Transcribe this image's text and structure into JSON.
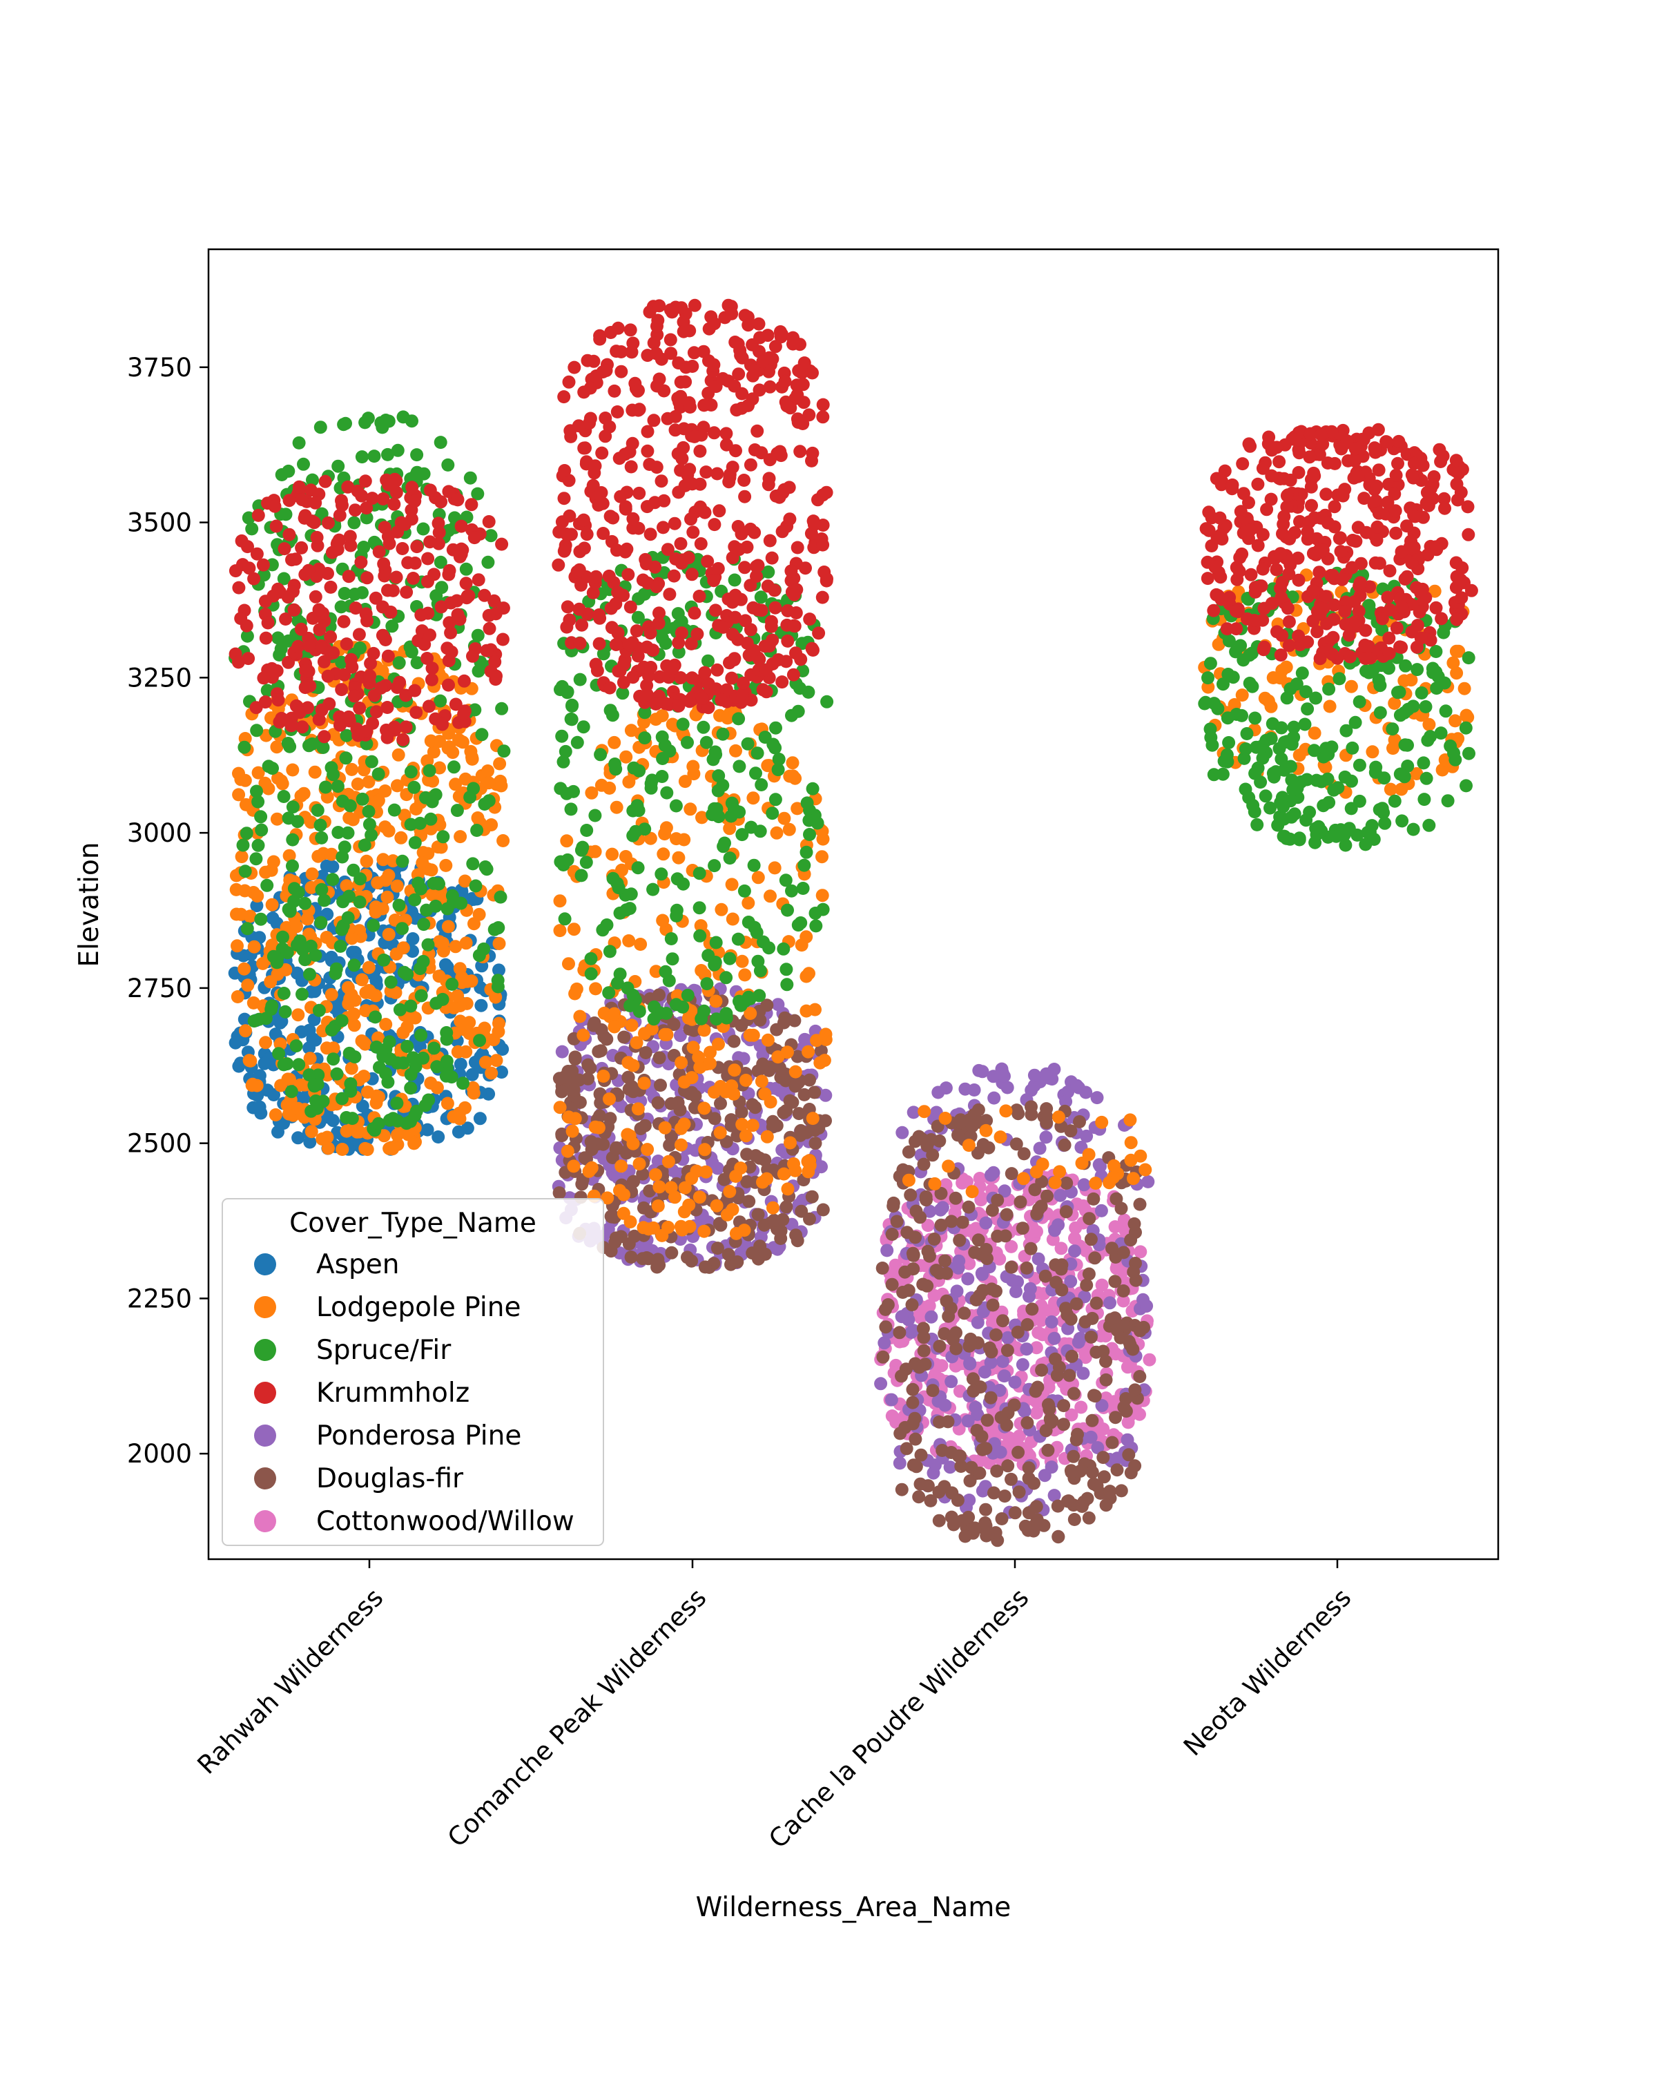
{
  "chart_data": {
    "type": "swarm",
    "xlabel": "Wilderness_Area_Name",
    "ylabel": "Elevation",
    "ylim": [
      1830,
      3940
    ],
    "yticks": [
      2000,
      2250,
      2500,
      2750,
      3000,
      3250,
      3500,
      3750
    ],
    "grid": false,
    "categories": [
      "Rahwah Wilderness",
      "Comanche Peak Wilderness",
      "Cache la Poudre Wilderness",
      "Neota Wilderness"
    ],
    "legend": {
      "title": "Cover_Type_Name",
      "position": "lower-left",
      "entries": [
        "Aspen",
        "Lodgepole Pine",
        "Spruce/Fir",
        "Krummholz",
        "Ponderosa Pine",
        "Douglas-fir",
        "Cottonwood/Willow"
      ]
    },
    "series": [
      {
        "name": "Aspen",
        "color": "#1f77b4",
        "ranges": [
          [
            2490,
            2950
          ],
          null,
          null,
          null
        ]
      },
      {
        "name": "Lodgepole Pine",
        "color": "#ff7f0e",
        "ranges": [
          [
            2490,
            3300
          ],
          [
            2350,
            3200
          ],
          [
            2420,
            2560
          ],
          [
            3060,
            3420
          ]
        ]
      },
      {
        "name": "Spruce/Fir",
        "color": "#2ca02c",
        "ranges": [
          [
            2520,
            3670
          ],
          [
            2700,
            3450
          ],
          null,
          [
            2980,
            3420
          ]
        ]
      },
      {
        "name": "Krummholz",
        "color": "#d62728",
        "ranges": [
          [
            3150,
            3570
          ],
          [
            3200,
            3850
          ],
          null,
          [
            3280,
            3650
          ]
        ]
      },
      {
        "name": "Ponderosa Pine",
        "color": "#9467bd",
        "ranges": [
          null,
          [
            2300,
            2750
          ],
          [
            1900,
            2620
          ],
          null
        ]
      },
      {
        "name": "Douglas-fir",
        "color": "#8c564b",
        "ranges": [
          null,
          [
            2300,
            2740
          ],
          [
            1860,
            2560
          ],
          null
        ]
      },
      {
        "name": "Cottonwood/Willow",
        "color": "#e377c2",
        "ranges": [
          null,
          null,
          [
            1980,
            2450
          ],
          null
        ]
      }
    ]
  }
}
